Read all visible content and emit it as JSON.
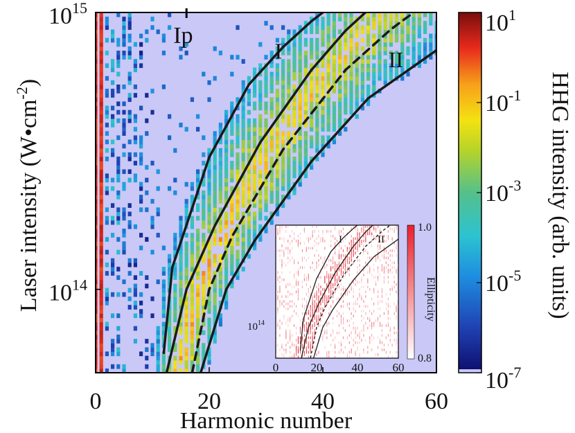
{
  "chart_data": {
    "type": "heatmap",
    "scale": "log",
    "xlabel": "Harmonic number",
    "ylabel_parts": [
      "Laser intensity (W",
      "•",
      "cm",
      "-2",
      ")"
    ],
    "xlim": [
      0,
      60
    ],
    "ylim": [
      50000000000000.0,
      1000000000000000.0
    ],
    "x_ticks": [
      {
        "value": 0,
        "label": "0"
      },
      {
        "value": 20,
        "label": "20"
      },
      {
        "value": 40,
        "label": "40"
      },
      {
        "value": 60,
        "label": "60"
      }
    ],
    "y_ticks": [
      {
        "value": 100000000000000.0,
        "base": "10",
        "exp": "14"
      },
      {
        "value": 1000000000000000.0,
        "base": "10",
        "exp": "15"
      }
    ],
    "colorbar": {
      "label": "HHG intensity (arb. units)",
      "ticks": [
        {
          "value": 10.0,
          "base": "10",
          "exp": "1"
        },
        {
          "value": 0.1,
          "base": "10",
          "exp": "-1"
        },
        {
          "value": 0.001,
          "base": "10",
          "exp": "-3"
        },
        {
          "value": 1e-05,
          "base": "10",
          "exp": "-5"
        },
        {
          "value": 1e-07,
          "base": "10",
          "exp": "-7"
        }
      ],
      "range": [
        1e-07,
        10.0
      ]
    },
    "annotations": [
      {
        "text": "Ip",
        "x": 16,
        "y": 1000000000000000.0
      },
      {
        "text": "I",
        "x": 32.5,
        "y": 730000000000000.0
      },
      {
        "text": "II",
        "x": 53.5,
        "y": 680000000000000.0
      }
    ],
    "curves": [
      {
        "name": "cutoff-left",
        "style": "solid",
        "points": [
          [
            12,
            59000000000000.0
          ],
          [
            13.5,
            120000000000000.0
          ],
          [
            20,
            300000000000000.0
          ],
          [
            27,
            550000000000000.0
          ],
          [
            33,
            750000000000000.0
          ],
          [
            38,
            930000000000000.0
          ],
          [
            40,
            1000000000000000.0
          ]
        ]
      },
      {
        "name": "I",
        "style": "solid",
        "points": [
          [
            12.5,
            50000000000000.0
          ],
          [
            16,
            100000000000000.0
          ],
          [
            21,
            170000000000000.0
          ],
          [
            29,
            340000000000000.0
          ],
          [
            38,
            620000000000000.0
          ],
          [
            44,
            860000000000000.0
          ],
          [
            47.5,
            1000000000000000.0
          ]
        ]
      },
      {
        "name": "dashed",
        "style": "dashed",
        "points": [
          [
            17,
            50000000000000.0
          ],
          [
            20,
            100000000000000.0
          ],
          [
            24,
            155000000000000.0
          ],
          [
            33,
            320000000000000.0
          ],
          [
            44,
            620000000000000.0
          ],
          [
            52,
            870000000000000.0
          ],
          [
            56,
            1000000000000000.0
          ]
        ]
      },
      {
        "name": "II",
        "style": "solid",
        "points": [
          [
            18.5,
            50000000000000.0
          ],
          [
            23,
            100000000000000.0
          ],
          [
            28,
            150000000000000.0
          ],
          [
            38,
            290000000000000.0
          ],
          [
            48,
            490000000000000.0
          ],
          [
            60,
            730000000000000.0
          ]
        ]
      }
    ],
    "inset": {
      "xlim": [
        0,
        60
      ],
      "x_ticks": [
        {
          "value": 0,
          "label": "0"
        },
        {
          "value": 20,
          "label": "20"
        },
        {
          "value": 40,
          "label": "40"
        },
        {
          "value": 60,
          "label": "60"
        }
      ],
      "y_tick": {
        "base": "10",
        "exp": "14"
      },
      "colorbar_label": "Ellipticity",
      "colorbar_ticks": [
        "1.0",
        "0.8"
      ],
      "annotations": [
        "I",
        "II"
      ]
    }
  }
}
